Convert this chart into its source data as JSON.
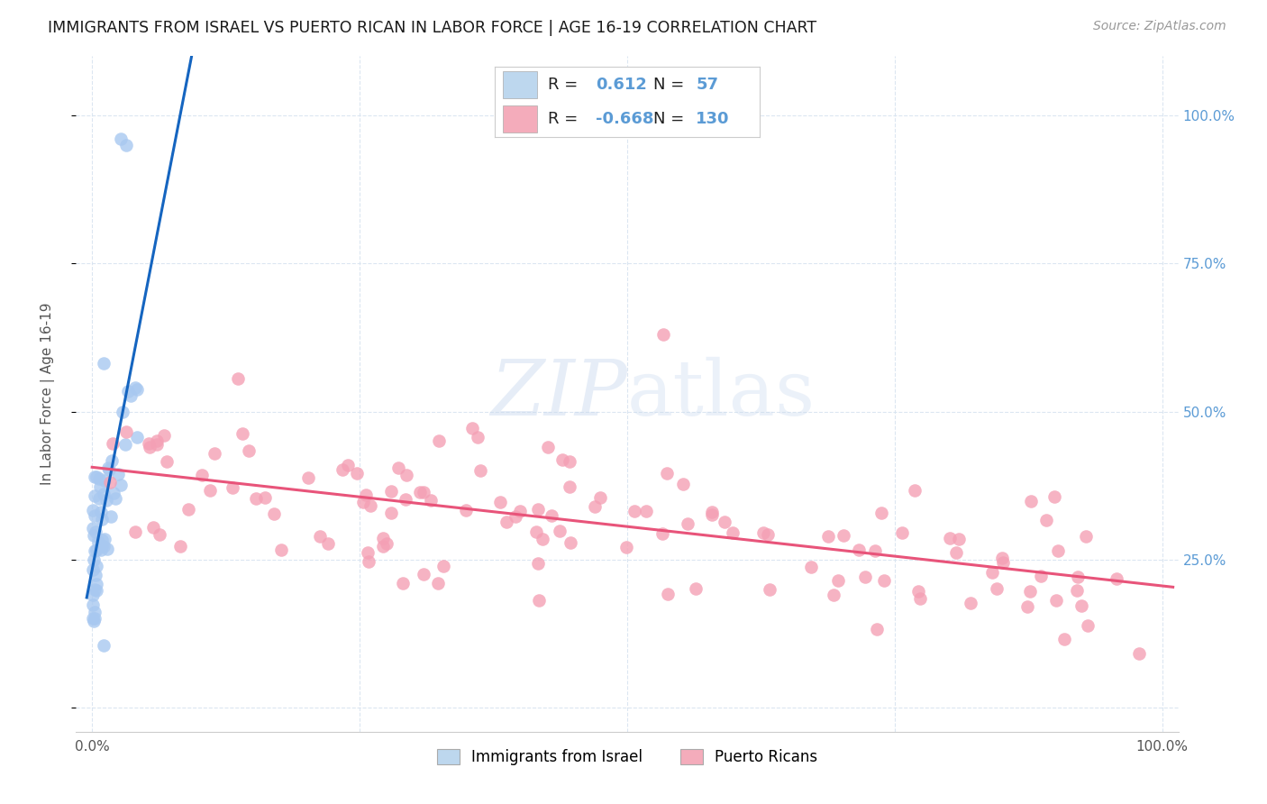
{
  "title": "IMMIGRANTS FROM ISRAEL VS PUERTO RICAN IN LABOR FORCE | AGE 16-19 CORRELATION CHART",
  "source": "Source: ZipAtlas.com",
  "ylabel": "In Labor Force | Age 16-19",
  "watermark_zip": "ZIP",
  "watermark_atlas": "atlas",
  "r_israel": 0.612,
  "n_israel": 57,
  "r_puerto": -0.668,
  "n_puerto": 130,
  "blue_scatter_color": "#A8C8F0",
  "pink_scatter_color": "#F4A0B5",
  "blue_line_color": "#1565C0",
  "pink_line_color": "#E8547A",
  "blue_legend_fill": "#BDD7EE",
  "pink_legend_fill": "#F4ACBB",
  "title_color": "#1a1a1a",
  "right_axis_color": "#5B9BD5",
  "legend_text_color": "#222222",
  "background_color": "#FFFFFF",
  "grid_color": "#D8E4F0",
  "title_fontsize": 12.5,
  "source_fontsize": 10,
  "axis_label_fontsize": 11,
  "tick_fontsize": 11,
  "legend_fontsize": 13
}
